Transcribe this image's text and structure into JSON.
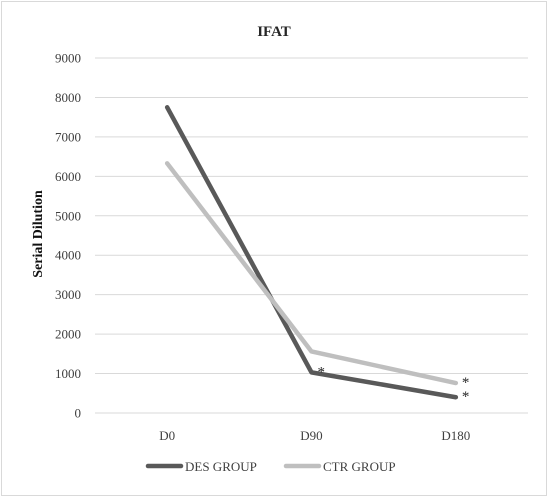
{
  "chart_data": {
    "type": "line",
    "title": "IFAT",
    "xlabel": "",
    "ylabel": "Serial Dilution",
    "categories": [
      "D0",
      "D90",
      "D180"
    ],
    "ylim": [
      0,
      9000
    ],
    "yticks": [
      0,
      1000,
      2000,
      3000,
      4000,
      5000,
      6000,
      7000,
      8000,
      9000
    ],
    "grid": true,
    "legend_position": "bottom",
    "series": [
      {
        "name": "DES GROUP",
        "values": [
          7750,
          1030,
          400
        ],
        "color": "#595959"
      },
      {
        "name": "CTR GROUP",
        "values": [
          6330,
          1560,
          760
        ],
        "color": "#bfbfbf"
      }
    ],
    "annotations": [
      {
        "text": "*",
        "category": "D90",
        "value": 1030
      },
      {
        "text": "*",
        "category": "D180",
        "value": 760
      },
      {
        "text": "*",
        "category": "D180",
        "value": 400
      }
    ]
  }
}
